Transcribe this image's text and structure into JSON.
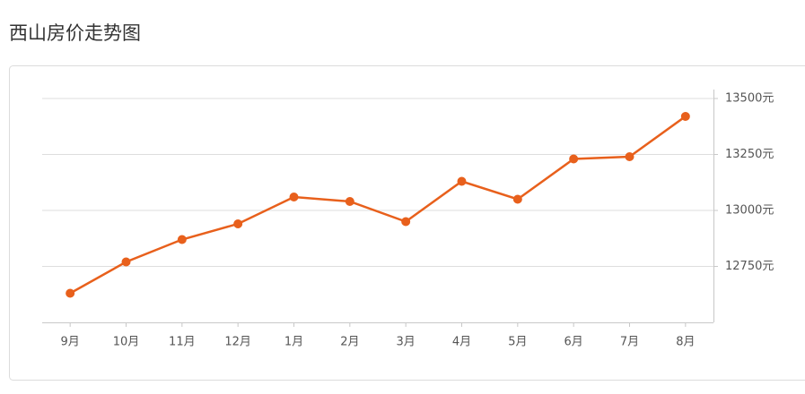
{
  "chart_data": {
    "type": "line",
    "title": "西山房价走势图",
    "categories": [
      "9月",
      "10月",
      "11月",
      "12月",
      "1月",
      "2月",
      "3月",
      "4月",
      "5月",
      "6月",
      "7月",
      "8月"
    ],
    "series": [
      {
        "color": "#e8601c",
        "values": [
          12630,
          12770,
          12870,
          12940,
          13060,
          13040,
          12950,
          13130,
          13050,
          13230,
          13240,
          13420
        ]
      }
    ],
    "ylim": [
      12500,
      13500
    ],
    "yticks": [
      {
        "value": 12750,
        "label": "12750元"
      },
      {
        "value": 13000,
        "label": "13000元"
      },
      {
        "value": 13250,
        "label": "13250元"
      },
      {
        "value": 13500,
        "label": "13500元"
      }
    ],
    "grid": true
  }
}
